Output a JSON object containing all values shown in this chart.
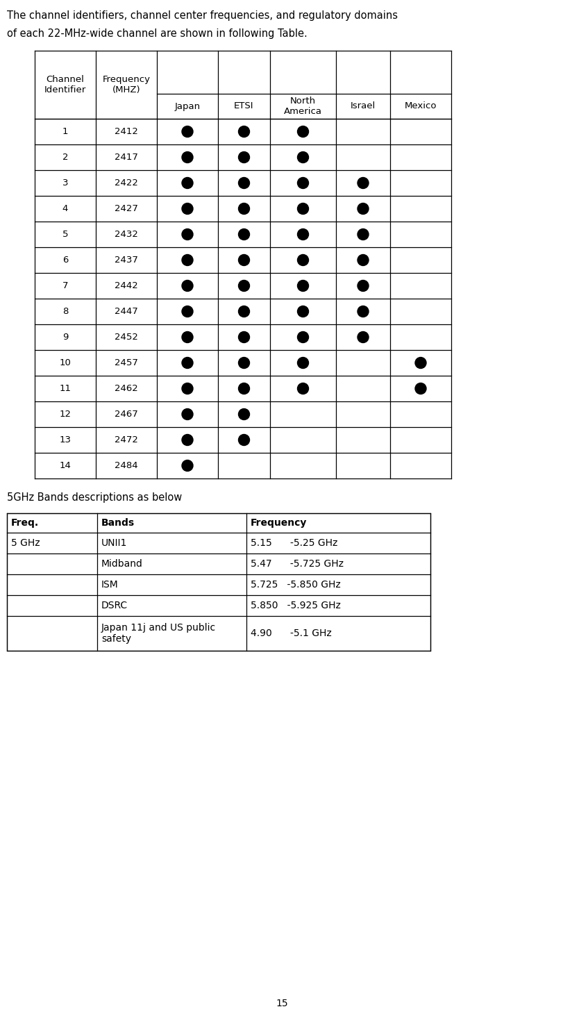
{
  "intro_text_line1": "The channel identifiers, channel center frequencies, and regulatory domains",
  "intro_text_line2": "of each 22-MHz-wide channel are shown in following Table.",
  "table1_channels": [
    1,
    2,
    3,
    4,
    5,
    6,
    7,
    8,
    9,
    10,
    11,
    12,
    13,
    14
  ],
  "table1_frequencies": [
    2412,
    2417,
    2422,
    2427,
    2432,
    2437,
    2442,
    2447,
    2452,
    2457,
    2462,
    2467,
    2472,
    2484
  ],
  "table1_dots": [
    [
      1,
      1,
      1,
      0,
      0
    ],
    [
      1,
      1,
      1,
      0,
      0
    ],
    [
      1,
      1,
      1,
      1,
      0
    ],
    [
      1,
      1,
      1,
      1,
      0
    ],
    [
      1,
      1,
      1,
      1,
      0
    ],
    [
      1,
      1,
      1,
      1,
      0
    ],
    [
      1,
      1,
      1,
      1,
      0
    ],
    [
      1,
      1,
      1,
      1,
      0
    ],
    [
      1,
      1,
      1,
      1,
      0
    ],
    [
      1,
      1,
      1,
      0,
      1
    ],
    [
      1,
      1,
      1,
      0,
      1
    ],
    [
      1,
      1,
      0,
      0,
      0
    ],
    [
      1,
      1,
      0,
      0,
      0
    ],
    [
      1,
      0,
      0,
      0,
      0
    ]
  ],
  "col_labels": [
    "Japan",
    "ETSI",
    "North\nAmerica",
    "Israel",
    "Mexico"
  ],
  "section2_title": "5GHz Bands descriptions as below",
  "table2_headers": [
    "Freq.",
    "Bands",
    "Frequency"
  ],
  "table2_rows": [
    [
      "5 GHz",
      "UNII1",
      "5.15      -5.25 GHz"
    ],
    [
      "",
      "Midband",
      "5.47      -5.725 GHz"
    ],
    [
      "",
      "ISM",
      "5.725   -5.850 GHz"
    ],
    [
      "",
      "DSRC",
      "5.850   -5.925 GHz"
    ],
    [
      "",
      "Japan 11j and US public\nsafety",
      "4.90      -5.1 GHz"
    ]
  ],
  "page_number": "15",
  "background_color": "#ffffff",
  "text_color": "#000000",
  "dot_color": "#000000",
  "border_color": "#000000"
}
